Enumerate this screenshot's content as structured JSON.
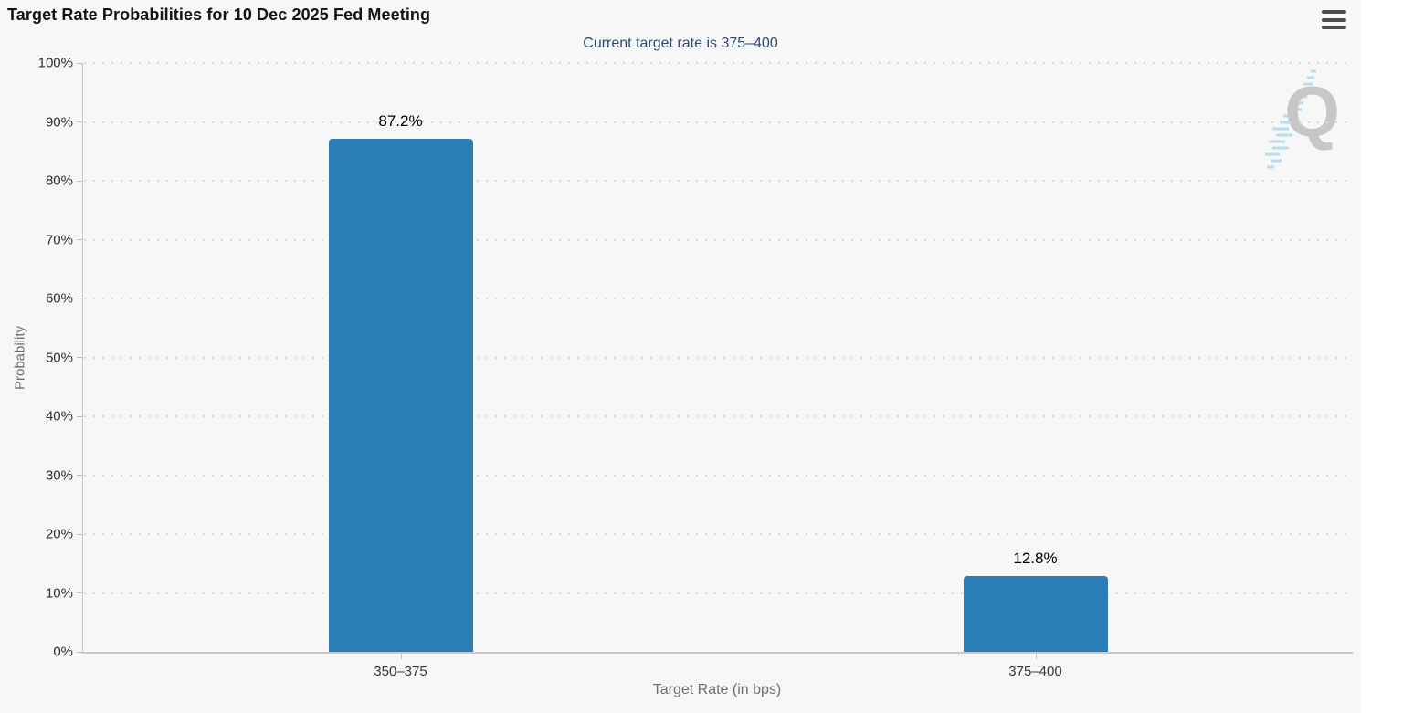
{
  "menu": {
    "icon": "hamburger",
    "bars": 3
  },
  "watermark": {
    "letter": "Q",
    "name": "quikstrike-logo"
  },
  "chart_data": {
    "type": "bar",
    "title": "Target Rate Probabilities for 10 Dec 2025 Fed Meeting",
    "subtitle": "Current target rate is 375–400",
    "xlabel": "Target Rate (in bps)",
    "ylabel": "Probability",
    "categories": [
      "350–375",
      "375–400"
    ],
    "values": [
      87.2,
      12.8
    ],
    "value_labels": [
      "87.2%",
      "12.8%"
    ],
    "ylim": [
      0,
      100
    ],
    "ytick_step": 10,
    "ytick_labels": [
      "0%",
      "10%",
      "20%",
      "30%",
      "40%",
      "50%",
      "60%",
      "70%",
      "80%",
      "90%",
      "100%"
    ],
    "grid": "dotted-horizontal",
    "legend": "none",
    "bar_color": "#2b7eb5",
    "background_color": "#f7f7f7",
    "subtitle_color": "#2d4a77"
  }
}
